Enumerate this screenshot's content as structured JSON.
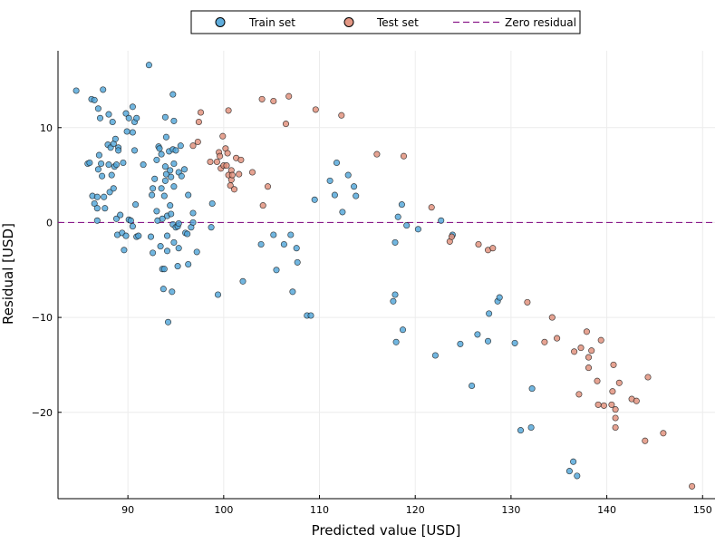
{
  "chart_data": {
    "type": "scatter",
    "xlabel": "Predicted value [USD]",
    "ylabel": "Residual [USD]",
    "xlim": [
      82.7,
      151.3
    ],
    "ylim": [
      -29.1,
      18.1
    ],
    "x_ticks": [
      90,
      100,
      110,
      120,
      130,
      140,
      150
    ],
    "y_ticks": [
      -20,
      -10,
      0,
      10
    ],
    "y_tick_labels": [
      "−20",
      "−10",
      "0",
      "10"
    ],
    "grid": true,
    "legend_position": "top-center",
    "colors": {
      "train": "#4ea4d8",
      "test": "#e08c77",
      "zero_line": "#8b1a8b"
    },
    "reference_line": {
      "name": "Zero residual",
      "y": 0
    },
    "series": [
      {
        "name": "Train set",
        "points": [
          [
            84.6,
            13.9
          ],
          [
            85.8,
            6.2
          ],
          [
            86.0,
            6.3
          ],
          [
            86.2,
            13.0
          ],
          [
            86.5,
            12.9
          ],
          [
            86.3,
            2.8
          ],
          [
            86.8,
            2.7
          ],
          [
            86.5,
            2.0
          ],
          [
            86.8,
            1.5
          ],
          [
            86.8,
            0.2
          ],
          [
            86.9,
            5.6
          ],
          [
            86.9,
            12.0
          ],
          [
            87.0,
            7.1
          ],
          [
            87.1,
            11.0
          ],
          [
            87.2,
            6.2
          ],
          [
            87.4,
            14.0
          ],
          [
            87.3,
            4.9
          ],
          [
            87.5,
            2.7
          ],
          [
            87.6,
            1.5
          ],
          [
            87.9,
            8.2
          ],
          [
            88.0,
            11.4
          ],
          [
            88.0,
            6.1
          ],
          [
            88.1,
            3.2
          ],
          [
            88.2,
            7.9
          ],
          [
            88.3,
            5.0
          ],
          [
            88.4,
            10.6
          ],
          [
            88.5,
            3.6
          ],
          [
            88.5,
            8.3
          ],
          [
            88.6,
            5.9
          ],
          [
            88.7,
            8.8
          ],
          [
            88.8,
            6.1
          ],
          [
            88.8,
            0.4
          ],
          [
            88.9,
            -1.3
          ],
          [
            89.0,
            7.9
          ],
          [
            89.0,
            7.6
          ],
          [
            89.2,
            0.8
          ],
          [
            89.4,
            -1.1
          ],
          [
            89.5,
            6.3
          ],
          [
            89.6,
            -2.9
          ],
          [
            89.8,
            11.5
          ],
          [
            89.8,
            -1.4
          ],
          [
            89.9,
            9.6
          ],
          [
            90.1,
            11.0
          ],
          [
            90.1,
            0.3
          ],
          [
            90.3,
            0.2
          ],
          [
            90.5,
            12.2
          ],
          [
            90.5,
            9.5
          ],
          [
            90.5,
            -0.4
          ],
          [
            90.7,
            10.6
          ],
          [
            90.7,
            7.6
          ],
          [
            90.8,
            1.9
          ],
          [
            90.9,
            11.0
          ],
          [
            90.9,
            -1.5
          ],
          [
            91.1,
            -1.4
          ],
          [
            91.6,
            6.1
          ],
          [
            92.2,
            16.6
          ],
          [
            92.4,
            -1.5
          ],
          [
            92.5,
            2.9
          ],
          [
            92.6,
            3.6
          ],
          [
            92.6,
            -3.2
          ],
          [
            92.8,
            4.6
          ],
          [
            93.0,
            6.6
          ],
          [
            93.0,
            1.2
          ],
          [
            93.1,
            0.2
          ],
          [
            93.2,
            8.0
          ],
          [
            93.3,
            7.8
          ],
          [
            93.4,
            -2.5
          ],
          [
            93.5,
            7.2
          ],
          [
            93.5,
            3.6
          ],
          [
            93.6,
            0.4
          ],
          [
            93.6,
            -4.9
          ],
          [
            93.7,
            -7.0
          ],
          [
            93.8,
            2.8
          ],
          [
            93.8,
            -4.9
          ],
          [
            93.9,
            11.1
          ],
          [
            93.9,
            5.9
          ],
          [
            93.9,
            4.4
          ],
          [
            94.0,
            9.0
          ],
          [
            94.0,
            5.1
          ],
          [
            94.1,
            0.7
          ],
          [
            94.1,
            -1.4
          ],
          [
            94.1,
            -3.0
          ],
          [
            94.2,
            -10.5
          ],
          [
            94.3,
            7.5
          ],
          [
            94.4,
            5.5
          ],
          [
            94.4,
            1.8
          ],
          [
            94.5,
            4.8
          ],
          [
            94.5,
            0.9
          ],
          [
            94.6,
            -7.3
          ],
          [
            94.7,
            13.5
          ],
          [
            94.7,
            7.7
          ],
          [
            94.7,
            -0.2
          ],
          [
            94.8,
            10.7
          ],
          [
            94.8,
            6.2
          ],
          [
            94.8,
            3.8
          ],
          [
            94.8,
            -2.1
          ],
          [
            95.0,
            7.6
          ],
          [
            95.0,
            -0.5
          ],
          [
            95.2,
            -0.4
          ],
          [
            95.2,
            -4.6
          ],
          [
            95.3,
            -0.1
          ],
          [
            95.3,
            -2.7
          ],
          [
            95.3,
            5.3
          ],
          [
            95.5,
            8.1
          ],
          [
            95.6,
            4.9
          ],
          [
            95.9,
            5.6
          ],
          [
            96.0,
            -1.1
          ],
          [
            96.2,
            -1.2
          ],
          [
            96.3,
            2.9
          ],
          [
            96.3,
            -4.4
          ],
          [
            96.6,
            -0.5
          ],
          [
            96.8,
            0.0
          ],
          [
            96.8,
            1.0
          ],
          [
            97.2,
            -3.1
          ],
          [
            98.7,
            -0.5
          ],
          [
            98.8,
            2.0
          ],
          [
            99.4,
            -7.6
          ],
          [
            102.0,
            -6.2
          ],
          [
            103.9,
            -2.3
          ],
          [
            105.2,
            -1.3
          ],
          [
            105.5,
            -5.0
          ],
          [
            106.3,
            -2.3
          ],
          [
            107.0,
            -1.3
          ],
          [
            107.2,
            -7.3
          ],
          [
            107.6,
            -2.7
          ],
          [
            107.7,
            -4.2
          ],
          [
            108.7,
            -9.8
          ],
          [
            109.1,
            -9.8
          ],
          [
            109.5,
            2.4
          ],
          [
            111.1,
            4.4
          ],
          [
            111.6,
            2.9
          ],
          [
            111.8,
            6.3
          ],
          [
            112.4,
            1.1
          ],
          [
            113.0,
            5.0
          ],
          [
            113.6,
            3.8
          ],
          [
            113.8,
            2.8
          ],
          [
            117.7,
            -8.3
          ],
          [
            117.9,
            -2.1
          ],
          [
            117.9,
            -7.6
          ],
          [
            118.0,
            -12.6
          ],
          [
            118.2,
            0.6
          ],
          [
            118.6,
            1.9
          ],
          [
            118.7,
            -11.3
          ],
          [
            119.1,
            -0.3
          ],
          [
            120.3,
            -0.7
          ],
          [
            122.1,
            -14.0
          ],
          [
            122.7,
            0.2
          ],
          [
            123.9,
            -1.3
          ],
          [
            124.7,
            -12.8
          ],
          [
            125.9,
            -17.2
          ],
          [
            126.5,
            -11.8
          ],
          [
            127.6,
            -12.5
          ],
          [
            127.7,
            -9.6
          ],
          [
            128.6,
            -8.3
          ],
          [
            128.8,
            -7.9
          ],
          [
            130.4,
            -12.7
          ],
          [
            131.0,
            -21.9
          ],
          [
            132.1,
            -21.6
          ],
          [
            132.2,
            -17.5
          ],
          [
            136.1,
            -26.2
          ],
          [
            136.5,
            -25.2
          ],
          [
            136.9,
            -26.7
          ]
        ]
      },
      {
        "name": "Test set",
        "points": [
          [
            96.8,
            8.1
          ],
          [
            97.4,
            10.6
          ],
          [
            97.3,
            8.5
          ],
          [
            97.6,
            11.6
          ],
          [
            98.6,
            6.4
          ],
          [
            99.3,
            6.4
          ],
          [
            99.5,
            7.4
          ],
          [
            99.6,
            7.0
          ],
          [
            99.7,
            5.7
          ],
          [
            99.9,
            9.1
          ],
          [
            100.0,
            6.0
          ],
          [
            100.2,
            7.8
          ],
          [
            100.3,
            6.0
          ],
          [
            100.4,
            7.3
          ],
          [
            100.5,
            5.0
          ],
          [
            100.5,
            11.8
          ],
          [
            100.7,
            3.9
          ],
          [
            100.8,
            5.5
          ],
          [
            100.8,
            4.5
          ],
          [
            100.9,
            5.0
          ],
          [
            101.1,
            3.5
          ],
          [
            101.3,
            6.8
          ],
          [
            101.6,
            5.1
          ],
          [
            101.8,
            6.6
          ],
          [
            103.0,
            5.3
          ],
          [
            104.0,
            13.0
          ],
          [
            104.1,
            1.8
          ],
          [
            104.6,
            3.8
          ],
          [
            105.2,
            12.8
          ],
          [
            106.5,
            10.4
          ],
          [
            106.8,
            13.3
          ],
          [
            109.6,
            11.9
          ],
          [
            112.3,
            11.3
          ],
          [
            116.0,
            7.2
          ],
          [
            118.8,
            7.0
          ],
          [
            121.7,
            1.6
          ],
          [
            123.6,
            -2.0
          ],
          [
            123.8,
            -1.5
          ],
          [
            126.6,
            -2.3
          ],
          [
            127.6,
            -2.9
          ],
          [
            128.1,
            -2.7
          ],
          [
            131.7,
            -8.4
          ],
          [
            133.5,
            -12.6
          ],
          [
            134.3,
            -10.0
          ],
          [
            134.8,
            -12.2
          ],
          [
            136.6,
            -13.6
          ],
          [
            137.1,
            -18.1
          ],
          [
            137.3,
            -13.2
          ],
          [
            137.9,
            -11.5
          ],
          [
            138.1,
            -14.2
          ],
          [
            138.1,
            -15.3
          ],
          [
            138.4,
            -13.5
          ],
          [
            139.0,
            -16.7
          ],
          [
            139.1,
            -19.2
          ],
          [
            139.4,
            -12.4
          ],
          [
            139.7,
            -19.3
          ],
          [
            140.5,
            -19.2
          ],
          [
            140.6,
            -17.8
          ],
          [
            140.7,
            -15.0
          ],
          [
            140.9,
            -19.7
          ],
          [
            140.9,
            -20.6
          ],
          [
            140.9,
            -21.6
          ],
          [
            141.3,
            -16.9
          ],
          [
            142.6,
            -18.6
          ],
          [
            143.1,
            -18.8
          ],
          [
            144.0,
            -23.0
          ],
          [
            144.3,
            -16.3
          ],
          [
            145.9,
            -22.2
          ],
          [
            148.9,
            -27.8
          ]
        ]
      }
    ]
  }
}
